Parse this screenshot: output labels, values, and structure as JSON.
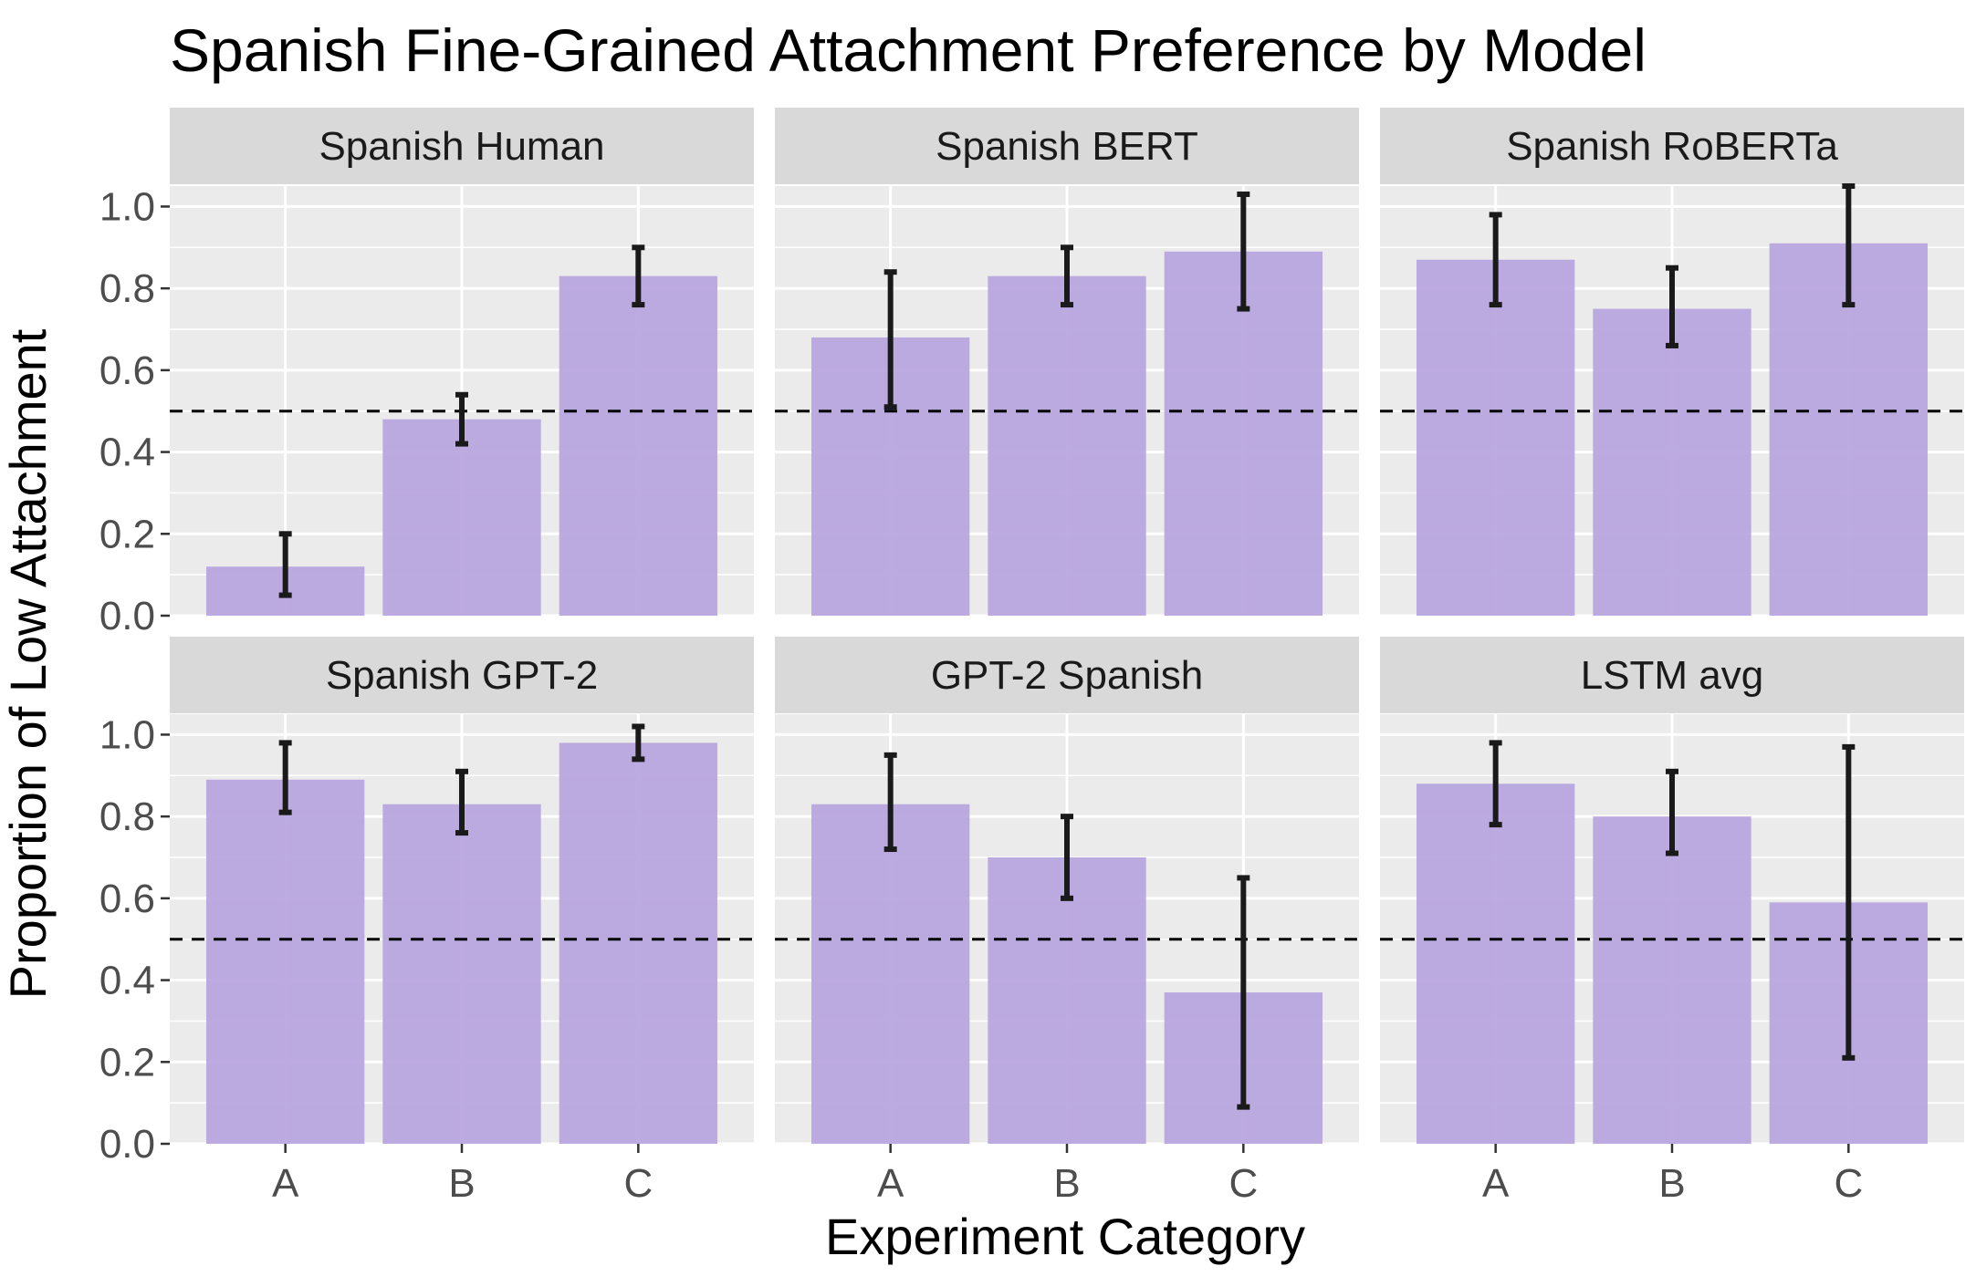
{
  "chart_data": {
    "type": "bar",
    "title": "Spanish Fine-Grained Attachment Preference by Model",
    "xlabel": "Experiment Category",
    "ylabel": "Proportion of Low Attachment",
    "categories": [
      "A",
      "B",
      "C"
    ],
    "ylim": [
      0,
      1.05
    ],
    "yticks": [
      "0.0",
      "0.2",
      "0.4",
      "0.6",
      "0.8",
      "1.0"
    ],
    "reference_line": 0.5,
    "grid": true,
    "colors": {
      "bar": "#b8a6de",
      "errorbar": "#1a1a1a",
      "panel_bg": "#ebebeb",
      "strip_bg": "#d9d9d9",
      "gridline": "#ffffff"
    },
    "panels": [
      {
        "name": "Spanish Human",
        "values": [
          0.12,
          0.48,
          0.83
        ],
        "lower": [
          0.05,
          0.42,
          0.76
        ],
        "upper": [
          0.2,
          0.54,
          0.9
        ]
      },
      {
        "name": "Spanish BERT",
        "values": [
          0.68,
          0.83,
          0.89
        ],
        "lower": [
          0.51,
          0.76,
          0.75
        ],
        "upper": [
          0.84,
          0.9,
          1.03
        ]
      },
      {
        "name": "Spanish RoBERTa",
        "values": [
          0.87,
          0.75,
          0.91
        ],
        "lower": [
          0.76,
          0.66,
          0.76
        ],
        "upper": [
          0.98,
          0.85,
          1.05
        ]
      },
      {
        "name": "Spanish GPT-2",
        "values": [
          0.89,
          0.83,
          0.98
        ],
        "lower": [
          0.81,
          0.76,
          0.94
        ],
        "upper": [
          0.98,
          0.91,
          1.02
        ]
      },
      {
        "name": "GPT-2 Spanish",
        "values": [
          0.83,
          0.7,
          0.37
        ],
        "lower": [
          0.72,
          0.6,
          0.09
        ],
        "upper": [
          0.95,
          0.8,
          0.65
        ]
      },
      {
        "name": "LSTM avg",
        "values": [
          0.88,
          0.8,
          0.59
        ],
        "lower": [
          0.78,
          0.71,
          0.21
        ],
        "upper": [
          0.98,
          0.91,
          0.97
        ]
      }
    ]
  }
}
